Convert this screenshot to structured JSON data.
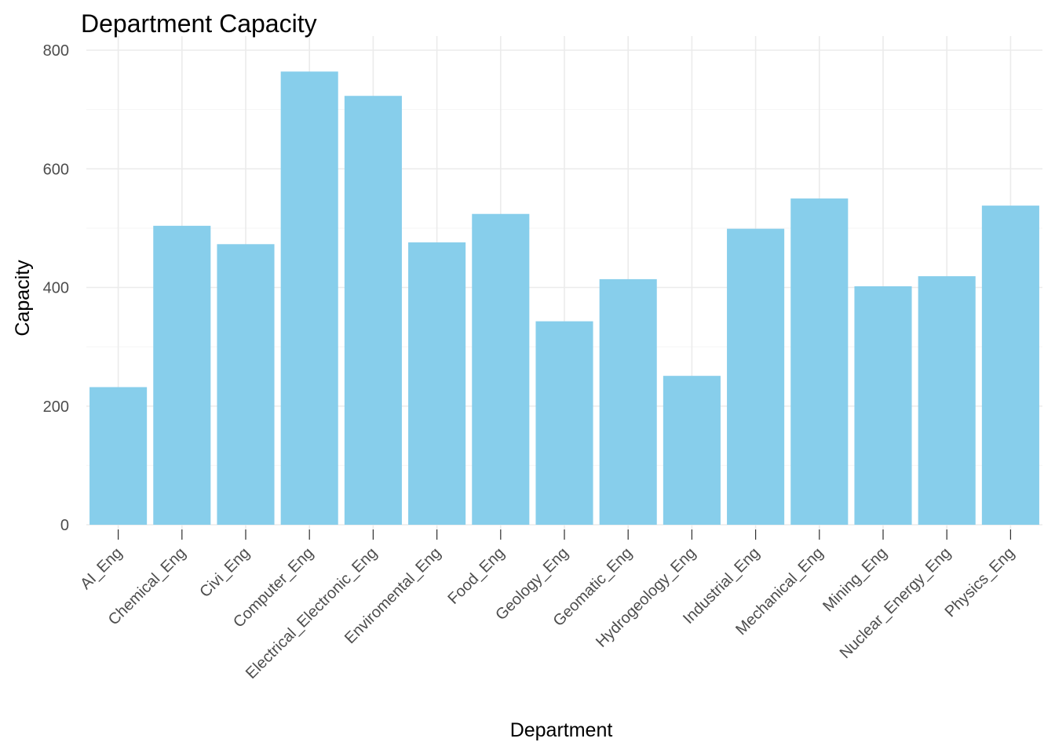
{
  "chart_data": {
    "type": "bar",
    "title": "Department Capacity",
    "xlabel": "Department",
    "ylabel": "Capacity",
    "categories": [
      "AI_Eng",
      "Chemical_Eng",
      "Civi_Eng",
      "Computer_Eng",
      "Electrical_Electronic_Eng",
      "Enviromental_Eng",
      "Food_Eng",
      "Geology_Eng",
      "Geomatic_Eng",
      "Hydrogeology_Eng",
      "Industrial_Eng",
      "Mechanical_Eng",
      "Mining_Eng",
      "Nuclear_Energy_Eng",
      "Physics_Eng"
    ],
    "values": [
      232,
      504,
      473,
      764,
      723,
      476,
      524,
      343,
      414,
      251,
      499,
      550,
      402,
      419,
      538
    ],
    "ylim": [
      0,
      800
    ],
    "yticks": [
      0,
      200,
      400,
      600,
      800
    ],
    "grid": true,
    "legend": "none",
    "bar_color": "#87CEEB",
    "grid_major_color": "#EBEBEB",
    "grid_minor_color": "#F5F5F5"
  }
}
